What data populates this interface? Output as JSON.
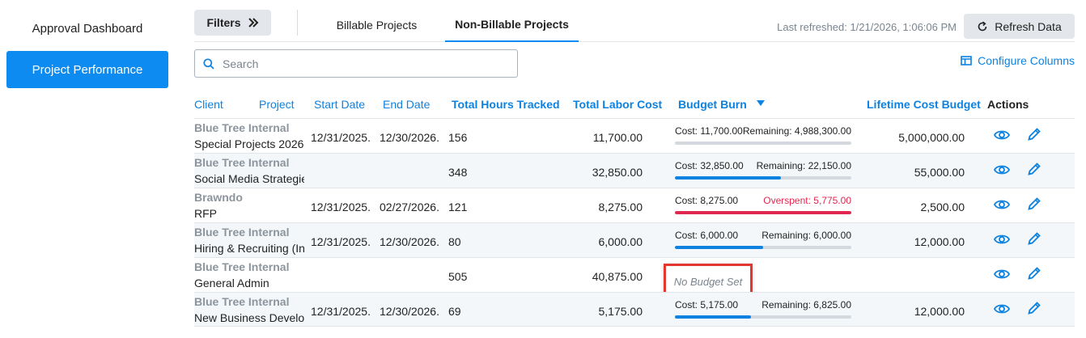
{
  "sidebar": {
    "items": [
      {
        "label": "Approval Dashboard",
        "active": false
      },
      {
        "label": "Project Performance",
        "active": true
      }
    ]
  },
  "toolbar": {
    "filters_label": "Filters",
    "filters_icon": "chevrons-right-icon",
    "tabs": [
      {
        "label": "Billable Projects",
        "active": false
      },
      {
        "label": "Non-Billable Projects",
        "active": true
      }
    ],
    "last_refreshed": "Last refreshed: 1/21/2026, 1:06:06 PM",
    "refresh_label": "Refresh Data",
    "refresh_icon": "refresh-icon"
  },
  "search": {
    "placeholder": "Search",
    "value": ""
  },
  "configure_columns_label": "Configure Columns",
  "columns": {
    "client": "Client",
    "project": "Project",
    "start_date": "Start Date",
    "end_date": "End Date",
    "total_hours": "Total Hours Tracked",
    "total_labor_cost": "Total Labor Cost",
    "budget_burn": "Budget Burn",
    "lifetime_cost_budget": "Lifetime Cost Budget",
    "actions": "Actions"
  },
  "rows": [
    {
      "client": "Blue Tree Internal",
      "project": "Special Projects 2026",
      "start_date": "12/31/2025.",
      "end_date": "12/30/2026.",
      "hours": "156",
      "labor_cost": "11,700.00",
      "burn": {
        "cost_label": "Cost: 11,700.00",
        "remaining_label": "Remaining: 4,988,300.00",
        "fraction": 0.0,
        "overspent": false,
        "no_budget": false
      },
      "lifetime_budget": "5,000,000.00"
    },
    {
      "client": "Blue Tree Internal",
      "project": "Social Media Strategie",
      "start_date": "",
      "end_date": "",
      "hours": "348",
      "labor_cost": "32,850.00",
      "burn": {
        "cost_label": "Cost: 32,850.00",
        "remaining_label": "Remaining: 22,150.00",
        "fraction": 0.6,
        "overspent": false,
        "no_budget": false
      },
      "lifetime_budget": "55,000.00"
    },
    {
      "client": "Brawndo",
      "project": "RFP",
      "start_date": "12/31/2025.",
      "end_date": "02/27/2026.",
      "hours": "121",
      "labor_cost": "8,275.00",
      "burn": {
        "cost_label": "Cost: 8,275.00",
        "remaining_label": "Overspent: 5,775.00",
        "fraction": 1.0,
        "overspent": true,
        "no_budget": false
      },
      "lifetime_budget": "2,500.00"
    },
    {
      "client": "Blue Tree Internal",
      "project": "Hiring & Recruiting (In",
      "start_date": "12/31/2025.",
      "end_date": "12/30/2026.",
      "hours": "80",
      "labor_cost": "6,000.00",
      "burn": {
        "cost_label": "Cost: 6,000.00",
        "remaining_label": "Remaining: 6,000.00",
        "fraction": 0.5,
        "overspent": false,
        "no_budget": false
      },
      "lifetime_budget": "12,000.00"
    },
    {
      "client": "Blue Tree Internal",
      "project": "General Admin",
      "start_date": "",
      "end_date": "",
      "hours": "505",
      "labor_cost": "40,875.00",
      "burn": {
        "cost_label": "",
        "remaining_label": "",
        "fraction": 0,
        "overspent": false,
        "no_budget": true,
        "no_budget_label": "No Budget Set"
      },
      "lifetime_budget": ""
    },
    {
      "client": "Blue Tree Internal",
      "project": "New Business Develop",
      "start_date": "12/31/2025.",
      "end_date": "12/30/2026.",
      "hours": "69",
      "labor_cost": "5,175.00",
      "burn": {
        "cost_label": "Cost: 5,175.00",
        "remaining_label": "Remaining: 6,825.00",
        "fraction": 0.43,
        "overspent": false,
        "no_budget": false
      },
      "lifetime_budget": "12,000.00"
    }
  ],
  "row_actions": {
    "view_icon": "eye-icon",
    "edit_icon": "pencil-icon"
  },
  "colors": {
    "accent": "#0d8bf0",
    "link": "#0d82e0",
    "overspent": "#e0274f",
    "highlight_box": "#e2372f"
  }
}
